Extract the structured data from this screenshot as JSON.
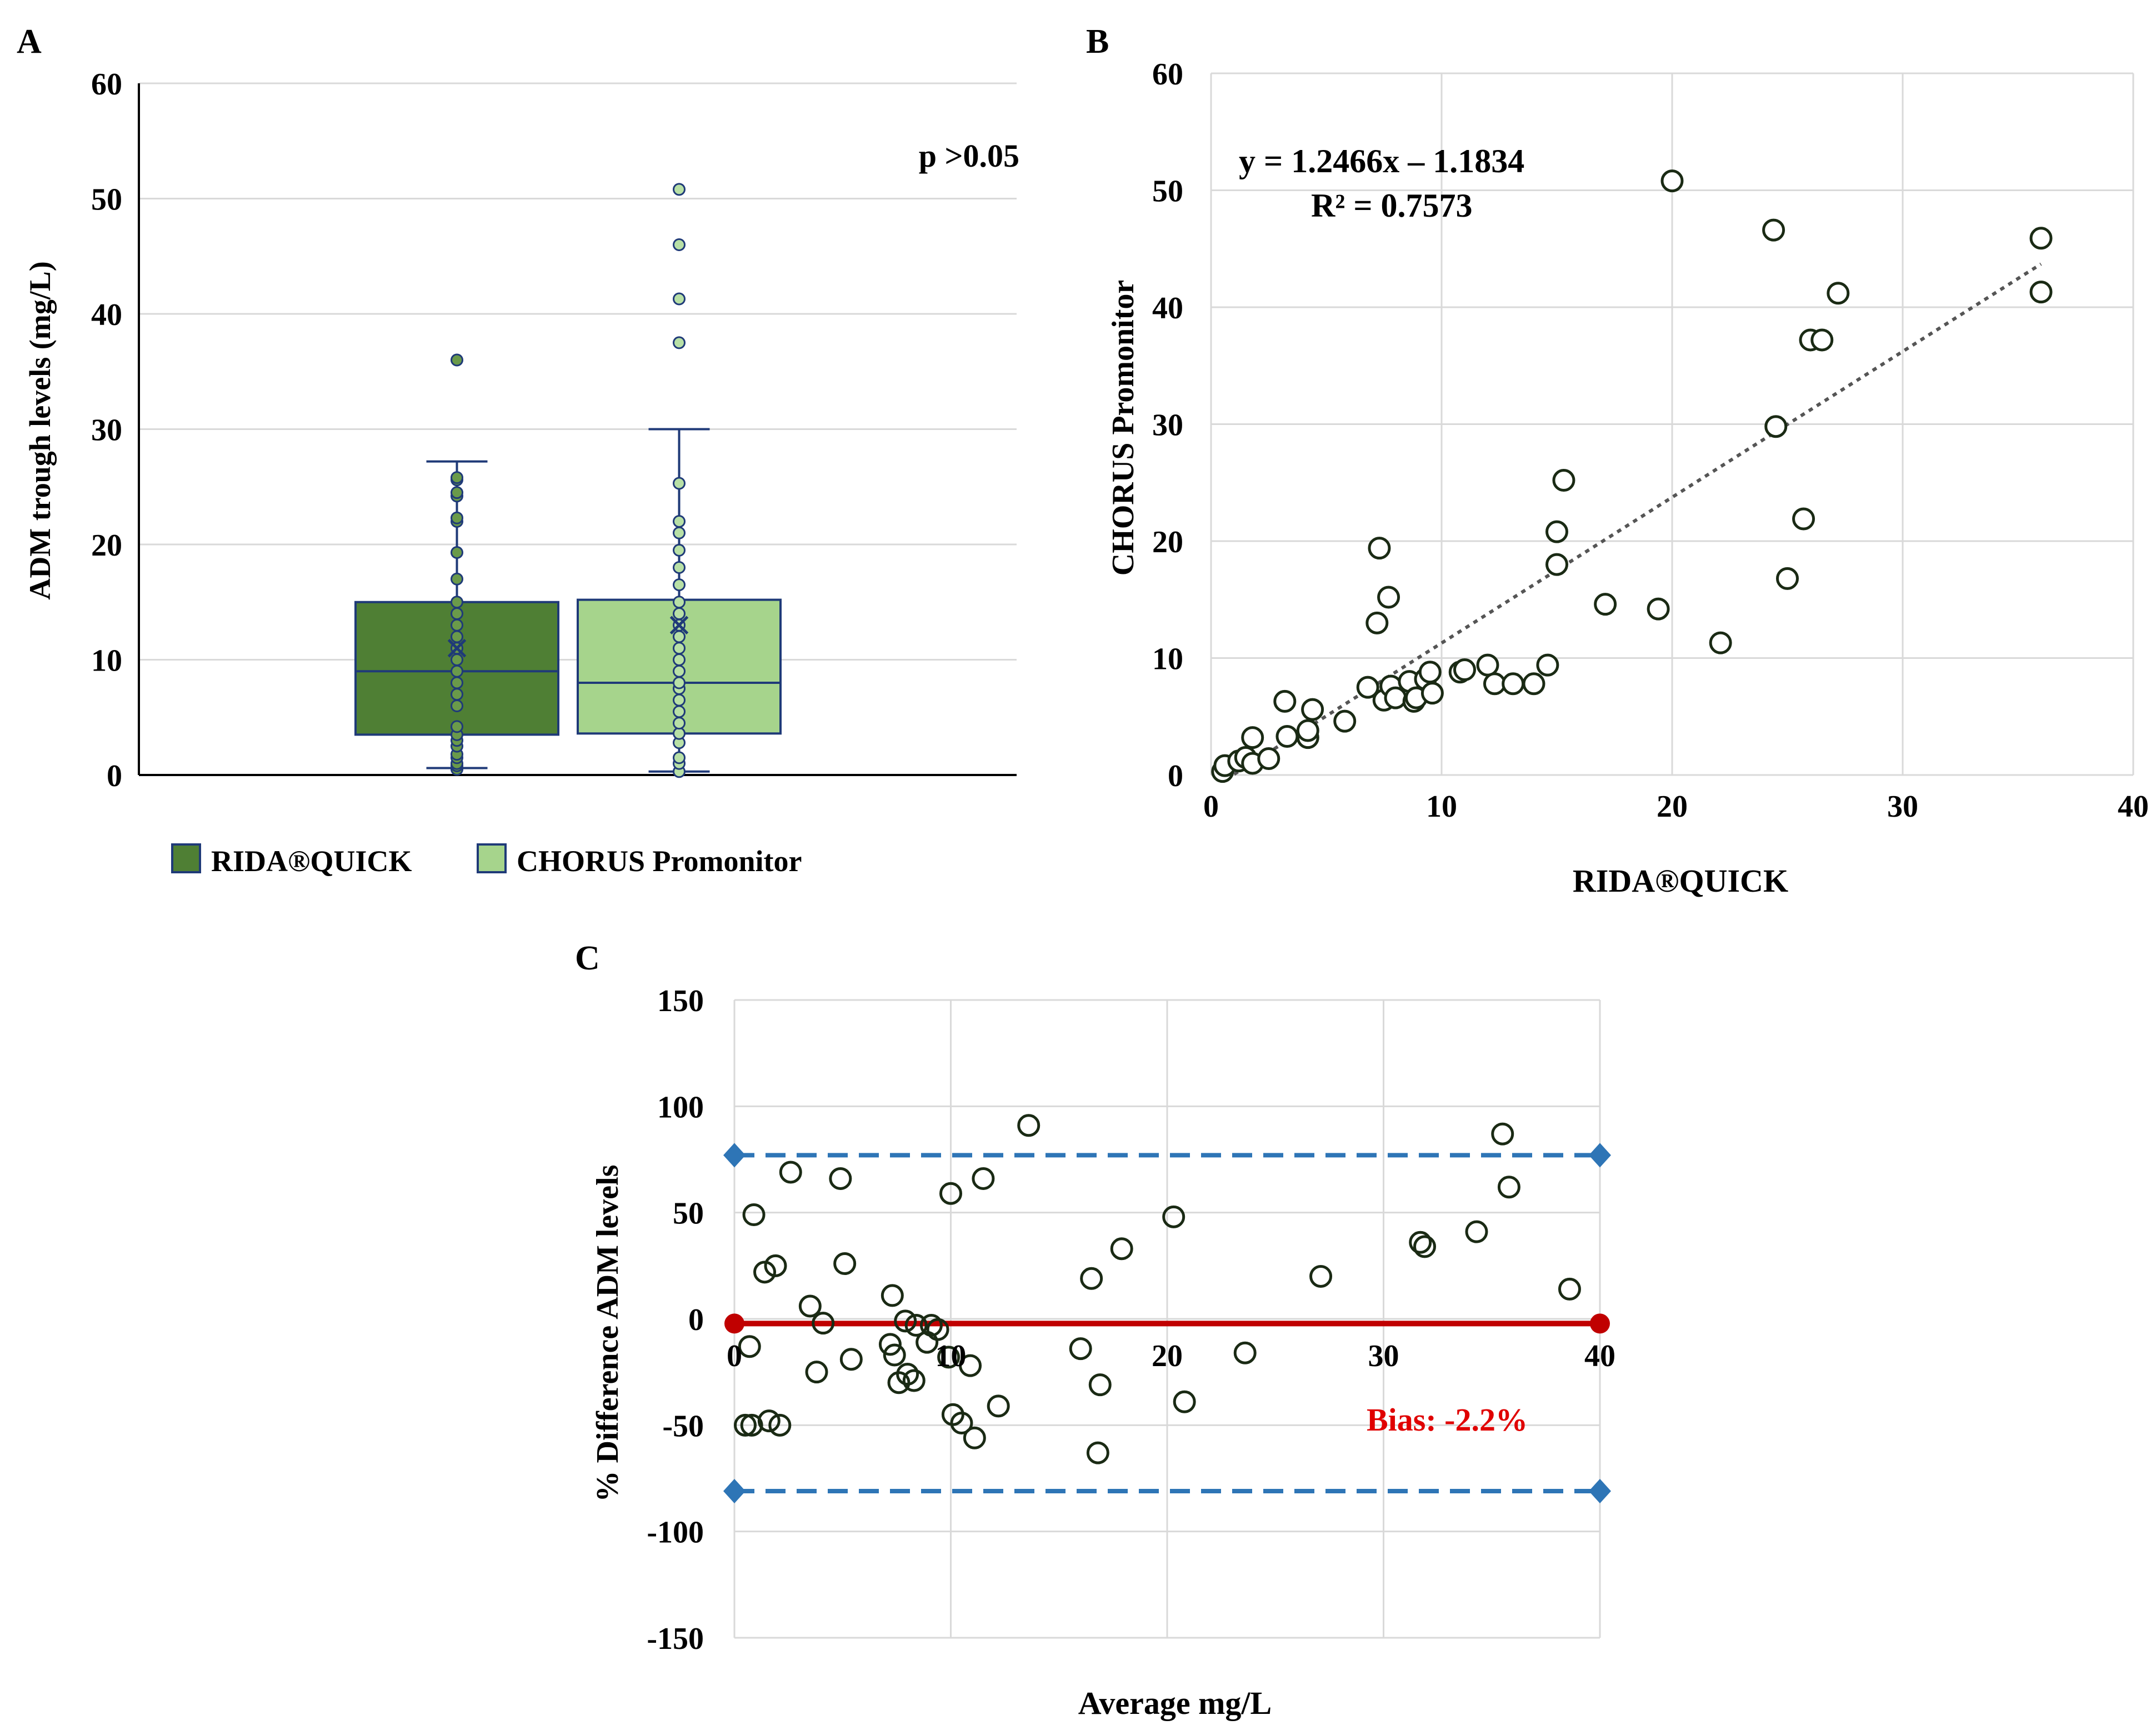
{
  "panels": {
    "A": "A",
    "B": "B",
    "C": "C"
  },
  "colors": {
    "rida": "#4f7f34",
    "chorus": "#a6d48c",
    "navy": "#1f3a78",
    "grid": "#d9d9d9",
    "axis": "#000000",
    "point_stroke": "#1a2a14",
    "trend": "#555555",
    "loa": "#2e75b6",
    "bias": "#c00000"
  },
  "chart_data": [
    {
      "panel": "A",
      "type": "box",
      "title": "",
      "xlabel": "",
      "ylabel": "ADM trough levels (mg/L)",
      "ylim": [
        0,
        60
      ],
      "yticks": [
        0,
        10,
        20,
        30,
        40,
        50,
        60
      ],
      "annotation": "p >0.05",
      "legend": [
        "RIDA®QUICK",
        "CHORUS Promonitor"
      ],
      "legend_position": "bottom-left",
      "series": [
        {
          "name": "RIDA®QUICK",
          "min": 0.6,
          "q1": 3.5,
          "median": 9.0,
          "q3": 15.0,
          "max": 27.2,
          "mean": 11.0,
          "outliers": [
            36
          ],
          "points": [
            0.5,
            0.8,
            1.0,
            1.5,
            1.8,
            2.5,
            3.0,
            3.5,
            4.2,
            6.0,
            7.0,
            8.0,
            9.0,
            10.0,
            11.0,
            12.0,
            13.0,
            14.0,
            15.0,
            17.0,
            19.3,
            22.0,
            22.3,
            24.2,
            24.5,
            25.6,
            25.8,
            36.0
          ]
        },
        {
          "name": "CHORUS Promonitor",
          "min": 0.3,
          "q1": 3.6,
          "median": 8.0,
          "q3": 15.2,
          "max": 30.0,
          "mean": 13.0,
          "outliers": [
            37.5,
            41.3,
            46.0,
            50.8
          ],
          "points": [
            0.3,
            1.0,
            1.5,
            2.8,
            3.6,
            4.5,
            5.5,
            6.5,
            7.5,
            8.0,
            9.0,
            10.0,
            11.0,
            12.0,
            13.0,
            14.0,
            15.0,
            16.5,
            18.0,
            19.5,
            21.0,
            22.0,
            25.3,
            37.5,
            41.3,
            46.0,
            50.8
          ]
        }
      ]
    },
    {
      "panel": "B",
      "type": "scatter",
      "title": "",
      "xlabel": "RIDA®QUICK",
      "ylabel": "CHORUS Promonitor",
      "xlim": [
        0,
        40
      ],
      "ylim": [
        0,
        60
      ],
      "xticks": [
        0,
        10,
        20,
        30,
        40
      ],
      "yticks": [
        0,
        10,
        20,
        30,
        40,
        50,
        60
      ],
      "equation": "y = 1.2466x – 1.1834",
      "r_squared": "R² = 0.7573",
      "trendline": {
        "slope": 1.2466,
        "intercept": -1.1834,
        "x_range": [
          1,
          36
        ]
      },
      "points": [
        [
          0.5,
          0.3
        ],
        [
          0.6,
          0.8
        ],
        [
          1.2,
          1.2
        ],
        [
          1.5,
          1.5
        ],
        [
          1.8,
          3.2
        ],
        [
          1.8,
          1.0
        ],
        [
          2.5,
          1.4
        ],
        [
          3.2,
          6.3
        ],
        [
          3.3,
          3.3
        ],
        [
          4.2,
          3.2
        ],
        [
          4.2,
          3.8
        ],
        [
          4.4,
          5.6
        ],
        [
          5.8,
          4.6
        ],
        [
          6.8,
          7.5
        ],
        [
          7.2,
          13.0
        ],
        [
          7.3,
          19.4
        ],
        [
          7.5,
          6.4
        ],
        [
          7.7,
          15.2
        ],
        [
          7.8,
          7.6
        ],
        [
          8.0,
          6.6
        ],
        [
          8.6,
          8.0
        ],
        [
          8.8,
          6.3
        ],
        [
          8.9,
          6.6
        ],
        [
          9.3,
          8.2
        ],
        [
          9.5,
          8.8
        ],
        [
          9.6,
          7.0
        ],
        [
          10.8,
          8.8
        ],
        [
          11.0,
          9.0
        ],
        [
          12.0,
          9.4
        ],
        [
          12.3,
          7.8
        ],
        [
          13.1,
          7.8
        ],
        [
          14.0,
          7.8
        ],
        [
          14.6,
          9.4
        ],
        [
          15.0,
          20.8
        ],
        [
          15.0,
          18.0
        ],
        [
          15.3,
          25.2
        ],
        [
          17.1,
          14.6
        ],
        [
          19.4,
          14.2
        ],
        [
          20.0,
          50.8
        ],
        [
          22.1,
          11.3
        ],
        [
          24.4,
          46.6
        ],
        [
          24.5,
          29.8
        ],
        [
          25.0,
          16.8
        ],
        [
          25.7,
          21.9
        ],
        [
          26.0,
          37.2
        ],
        [
          26.5,
          37.2
        ],
        [
          27.2,
          41.2
        ],
        [
          36.0,
          45.9
        ],
        [
          36.0,
          41.3
        ]
      ]
    },
    {
      "panel": "C",
      "type": "scatter",
      "title": "",
      "xlabel": "Average mg/L",
      "ylabel": "% Difference ADM levels",
      "xlim": [
        0,
        40
      ],
      "ylim": [
        -150,
        150
      ],
      "xticks": [
        0,
        10,
        20,
        30,
        40
      ],
      "yticks": [
        -150,
        -100,
        -50,
        0,
        50,
        100,
        150
      ],
      "bias_label": "Bias: -2.2%",
      "bias": -2.2,
      "upper_loa": 77,
      "lower_loa": -81,
      "points": [
        [
          0.5,
          -50
        ],
        [
          0.7,
          -13
        ],
        [
          0.8,
          -50
        ],
        [
          0.9,
          49
        ],
        [
          1.4,
          22
        ],
        [
          1.6,
          -48
        ],
        [
          1.9,
          25
        ],
        [
          2.1,
          -50
        ],
        [
          2.6,
          69
        ],
        [
          3.5,
          6
        ],
        [
          3.8,
          -25
        ],
        [
          4.1,
          -2
        ],
        [
          4.9,
          66
        ],
        [
          5.1,
          26
        ],
        [
          5.4,
          -19
        ],
        [
          7.2,
          -12
        ],
        [
          7.3,
          11
        ],
        [
          7.4,
          -17
        ],
        [
          7.6,
          -30
        ],
        [
          7.9,
          -1
        ],
        [
          8.0,
          -26
        ],
        [
          8.3,
          -29
        ],
        [
          8.4,
          -3
        ],
        [
          8.9,
          -11
        ],
        [
          9.1,
          -3
        ],
        [
          9.4,
          -5
        ],
        [
          9.9,
          -18
        ],
        [
          10.0,
          59
        ],
        [
          10.1,
          -45
        ],
        [
          10.5,
          -49
        ],
        [
          10.9,
          -22
        ],
        [
          11.1,
          -56
        ],
        [
          11.5,
          66
        ],
        [
          12.2,
          -41
        ],
        [
          13.6,
          91
        ],
        [
          16.0,
          -14
        ],
        [
          16.5,
          19
        ],
        [
          16.9,
          -31
        ],
        [
          16.8,
          -63
        ],
        [
          17.9,
          33
        ],
        [
          20.3,
          48
        ],
        [
          20.8,
          -39
        ],
        [
          23.6,
          -16
        ],
        [
          27.1,
          20
        ],
        [
          31.7,
          36
        ],
        [
          31.9,
          34
        ],
        [
          34.3,
          41
        ],
        [
          35.5,
          87
        ],
        [
          35.8,
          62
        ],
        [
          38.6,
          14
        ]
      ]
    }
  ]
}
